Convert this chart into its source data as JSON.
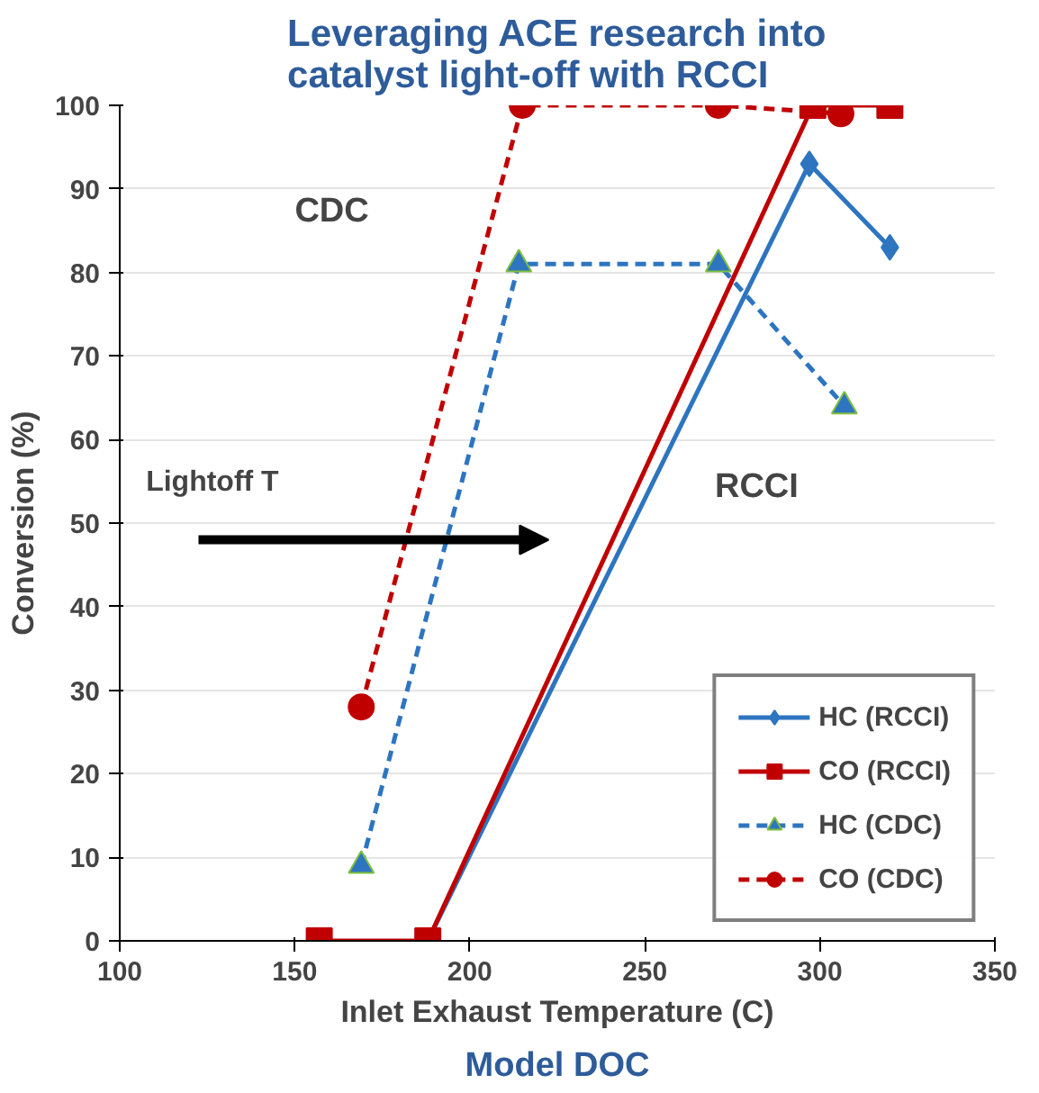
{
  "chart_data": {
    "type": "line",
    "title": "Leveraging ACE research into\ncatalyst light-off with RCCI",
    "xlabel": "Inlet Exhaust Temperature (C)",
    "ylabel": "Conversion (%)",
    "xlim": [
      100,
      350
    ],
    "xticks": [
      100,
      150,
      200,
      250,
      300,
      350
    ],
    "ylim": [
      0,
      100
    ],
    "yticks": [
      0,
      10,
      20,
      30,
      40,
      50,
      60,
      70,
      80,
      90,
      100
    ],
    "grid": "y",
    "legend": "bottom right",
    "series": [
      {
        "name": "HC (RCCI)",
        "color": "#2e75c0",
        "marker": "diamond",
        "line_style": "solid",
        "x": [
          188,
          297,
          320
        ],
        "values": [
          0,
          93,
          83
        ]
      },
      {
        "name": "CO (RCCI)",
        "color": "#c00000",
        "marker": "square",
        "line_style": "solid",
        "x": [
          157,
          188,
          298,
          320
        ],
        "values": [
          0,
          0,
          100,
          100
        ]
      },
      {
        "name": "HC (CDC)",
        "color": "#2e75c0",
        "marker": "triangle",
        "line_style": "dashed",
        "x": [
          169,
          214,
          271,
          307
        ],
        "values": [
          9,
          81,
          81,
          64
        ]
      },
      {
        "name": "CO (CDC)",
        "color": "#c00000",
        "marker": "circle",
        "line_style": "dashed",
        "x": [
          169,
          215,
          271,
          306
        ],
        "values": [
          28,
          100,
          100,
          99
        ]
      }
    ],
    "annotations": [
      "CDC",
      "Lightoff T",
      "RCCI",
      "Model DOC"
    ]
  }
}
